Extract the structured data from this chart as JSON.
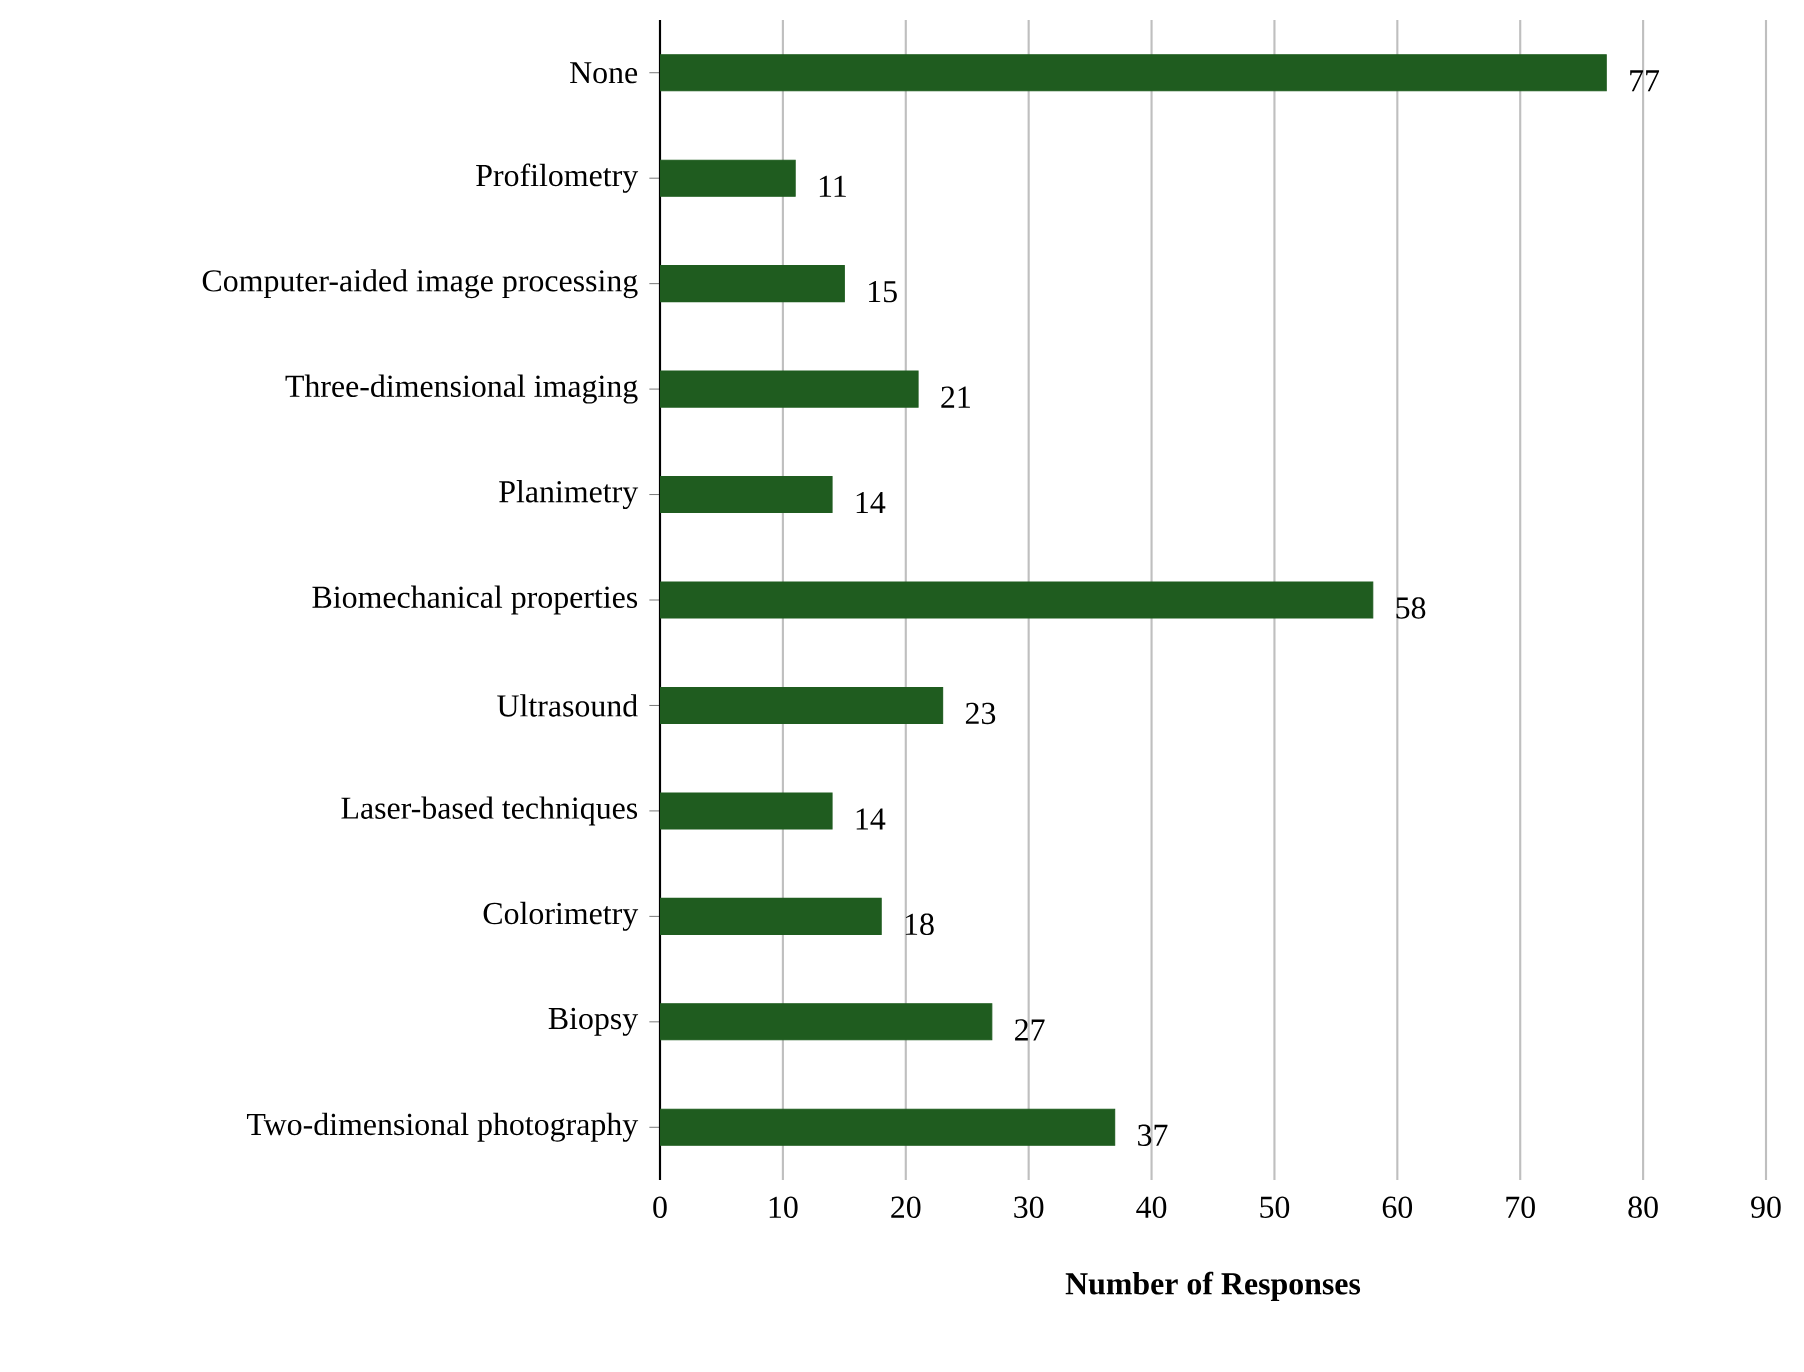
{
  "chart_data": {
    "type": "bar",
    "orientation": "horizontal",
    "xlabel": "Number of Responses",
    "categories": [
      "None",
      "Profilometry",
      "Computer-aided image processing",
      "Three-dimensional imaging",
      "Planimetry",
      "Biomechanical properties",
      "Ultrasound",
      "Laser-based techniques",
      "Colorimetry",
      "Biopsy",
      "Two-dimensional photography"
    ],
    "values": [
      77,
      11,
      15,
      21,
      14,
      58,
      23,
      14,
      18,
      27,
      37
    ],
    "color": "#1f5c1f",
    "xlim": [
      0,
      90
    ],
    "xticks": [
      0,
      10,
      20,
      30,
      40,
      50,
      60,
      70,
      80,
      90
    ],
    "grid": "x",
    "data_labels": true
  }
}
